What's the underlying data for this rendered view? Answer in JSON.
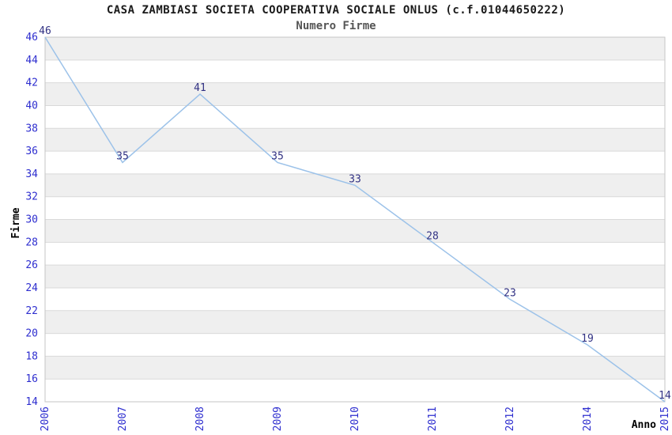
{
  "chart_data": {
    "type": "line",
    "title": "CASA ZAMBIASI SOCIETA COOPERATIVA SOCIALE ONLUS (c.f.01044650222)",
    "subtitle": "Numero Firme",
    "xlabel": "Anno",
    "ylabel": "Firme",
    "categories": [
      "2006",
      "2007",
      "2008",
      "2009",
      "2010",
      "2011",
      "2012",
      "2014",
      "2015"
    ],
    "values": [
      46,
      35,
      41,
      35,
      33,
      28,
      23,
      19,
      14
    ],
    "ylim": [
      14,
      46
    ],
    "y_tick_step": 2,
    "y_ticks": [
      46,
      44,
      42,
      40,
      38,
      36,
      34,
      32,
      30,
      28,
      26,
      24,
      22,
      20,
      18,
      16,
      14
    ],
    "grid": "horizontal gridlines with alternating shaded bands, no legend",
    "colors": {
      "line": "#9cc2e9",
      "band": "#efefef",
      "grid": "#d9d9d9",
      "border": "#c6c6c6",
      "tick_text": "#2e2ecf",
      "data_label_text": "#323284",
      "title_text": "#1a1a1a",
      "subtitle_text": "#555555",
      "background": "#ffffff"
    }
  }
}
